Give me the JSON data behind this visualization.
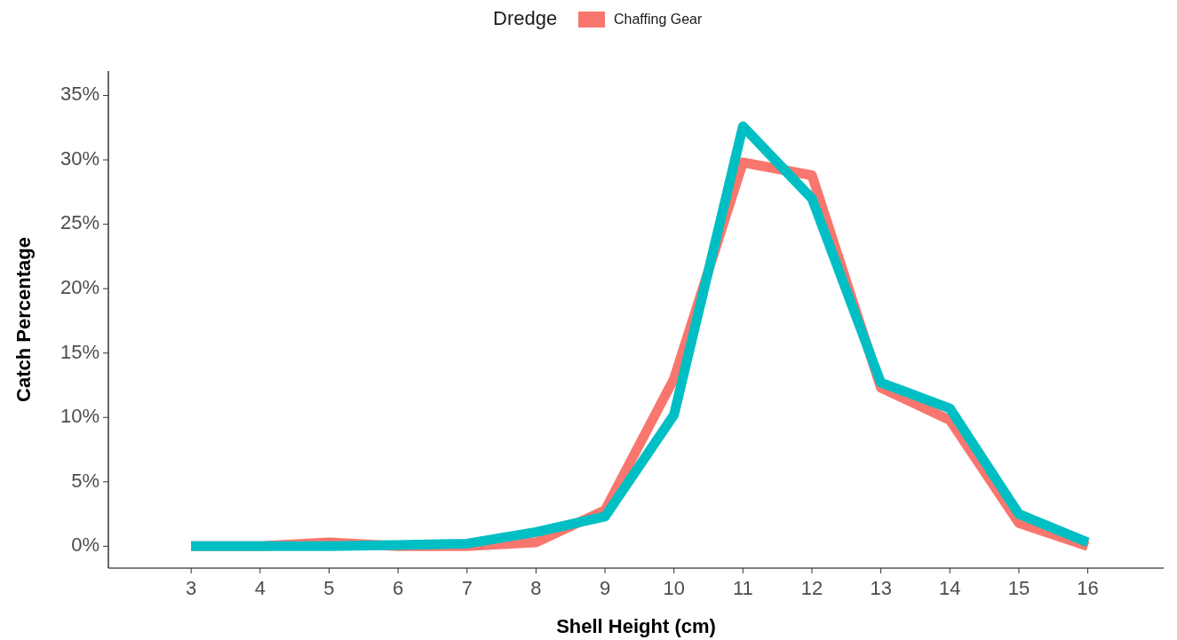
{
  "chart_data": {
    "type": "line",
    "xlabel": "Shell Height (cm)",
    "ylabel": "Catch Percentage",
    "legend_title": "Dredge",
    "legend": "top",
    "grid": false,
    "marker": "none",
    "line_style": "solid",
    "x": [
      3,
      4,
      5,
      6,
      7,
      8,
      9,
      10,
      11,
      12,
      13,
      14,
      15,
      16
    ],
    "xlim": [
      1.8,
      17.1
    ],
    "xticks": [
      3,
      4,
      5,
      6,
      7,
      8,
      9,
      10,
      11,
      12,
      13,
      14,
      15,
      16
    ],
    "ylim": [
      -1.7,
      36.9
    ],
    "yticks": [
      {
        "value": 0,
        "label": "0%"
      },
      {
        "value": 5,
        "label": "5%"
      },
      {
        "value": 10,
        "label": "10%"
      },
      {
        "value": 15,
        "label": "15%"
      },
      {
        "value": 20,
        "label": "20%"
      },
      {
        "value": 25,
        "label": "25%"
      },
      {
        "value": 30,
        "label": "30%"
      },
      {
        "value": 35,
        "label": "35%"
      }
    ],
    "series": [
      {
        "name": "Chaffing Gear",
        "color": "#f8766d",
        "values": [
          0,
          0,
          0.3,
          0,
          0,
          0.3,
          2.8,
          13,
          29.8,
          28.8,
          12.3,
          9.8,
          1.8,
          0
        ]
      },
      {
        "color": "#00bfc4",
        "values": [
          0,
          0,
          0,
          0.1,
          0.2,
          1.1,
          2.3,
          10.2,
          32.6,
          27,
          12.7,
          10.7,
          2.5,
          0.3
        ]
      }
    ]
  }
}
